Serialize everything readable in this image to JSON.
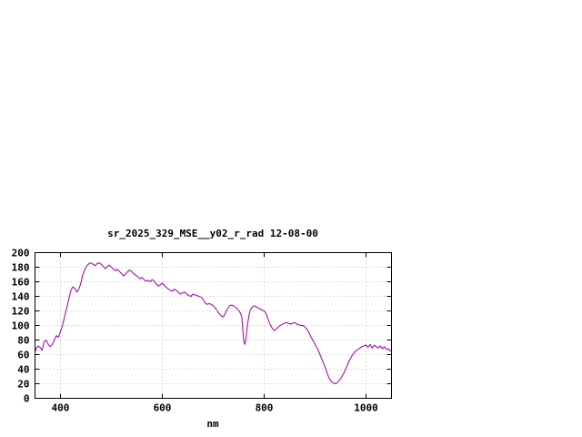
{
  "window": {
    "background": "#ffffff",
    "text_color": "#000000"
  },
  "chart_data": {
    "type": "line",
    "title": "sr_2025_329_MSE__y02_r_rad 12-08-00",
    "xlabel": "nm",
    "ylabel": "",
    "xlim": [
      350,
      1050
    ],
    "ylim": [
      0,
      200
    ],
    "x_ticks": [
      400,
      600,
      800,
      1000
    ],
    "y_ticks": [
      0,
      20,
      40,
      60,
      80,
      100,
      120,
      140,
      160,
      180,
      200
    ],
    "grid": true,
    "legend": "none",
    "line_color": "#990099",
    "grid_color": "#b8b8b8",
    "border_color": "#000000",
    "series": [
      {
        "name": "sr_2025_329_MSE__y02_r_rad",
        "x": [
          350,
          352,
          356,
          360,
          364,
          368,
          372,
          376,
          380,
          384,
          388,
          392,
          396,
          400,
          404,
          408,
          412,
          416,
          420,
          424,
          428,
          432,
          436,
          440,
          444,
          448,
          452,
          456,
          460,
          464,
          468,
          472,
          476,
          480,
          484,
          488,
          492,
          496,
          500,
          504,
          508,
          512,
          516,
          520,
          524,
          528,
          532,
          536,
          540,
          544,
          548,
          552,
          556,
          560,
          564,
          568,
          572,
          576,
          580,
          584,
          588,
          592,
          596,
          600,
          604,
          608,
          612,
          616,
          620,
          624,
          628,
          632,
          636,
          640,
          644,
          648,
          652,
          656,
          660,
          664,
          668,
          672,
          676,
          680,
          684,
          688,
          692,
          696,
          700,
          704,
          708,
          712,
          716,
          720,
          724,
          728,
          732,
          736,
          740,
          744,
          748,
          752,
          756,
          760,
          762,
          764,
          768,
          772,
          776,
          780,
          784,
          788,
          792,
          796,
          800,
          804,
          808,
          812,
          816,
          820,
          824,
          828,
          832,
          836,
          840,
          844,
          848,
          852,
          856,
          860,
          864,
          868,
          872,
          876,
          880,
          884,
          888,
          892,
          896,
          900,
          904,
          908,
          912,
          916,
          920,
          924,
          928,
          932,
          936,
          940,
          944,
          948,
          952,
          956,
          960,
          964,
          968,
          972,
          976,
          980,
          984,
          988,
          992,
          996,
          1000,
          1004,
          1008,
          1012,
          1016,
          1020,
          1024,
          1028,
          1032,
          1036,
          1040,
          1044,
          1048,
          1050
        ],
        "y": [
          62,
          68,
          72,
          70,
          66,
          78,
          80,
          74,
          71,
          74,
          80,
          86,
          84,
          92,
          100,
          112,
          123,
          135,
          147,
          153,
          151,
          146,
          150,
          158,
          170,
          177,
          182,
          185,
          186,
          184,
          182,
          185,
          186,
          184,
          181,
          178,
          181,
          183,
          180,
          178,
          175,
          177,
          174,
          171,
          168,
          171,
          174,
          176,
          174,
          171,
          169,
          167,
          164,
          166,
          163,
          161,
          162,
          160,
          163,
          161,
          157,
          154,
          156,
          158,
          155,
          152,
          150,
          148,
          147,
          150,
          148,
          145,
          143,
          145,
          146,
          143,
          141,
          140,
          143,
          142,
          141,
          140,
          139,
          136,
          131,
          129,
          130,
          129,
          127,
          124,
          120,
          116,
          113,
          112,
          117,
          123,
          127,
          128,
          127,
          125,
          122,
          119,
          112,
          78,
          74,
          80,
          105,
          120,
          125,
          127,
          126,
          124,
          123,
          121,
          120,
          116,
          108,
          101,
          96,
          93,
          95,
          98,
          100,
          102,
          103,
          104,
          103,
          102,
          103,
          104,
          102,
          101,
          100,
          100,
          98,
          95,
          90,
          84,
          79,
          74,
          69,
          63,
          56,
          49,
          42,
          34,
          27,
          23,
          21,
          20,
          22,
          25,
          29,
          34,
          40,
          47,
          53,
          58,
          62,
          65,
          67,
          69,
          71,
          72,
          73,
          70,
          74,
          69,
          73,
          71,
          69,
          72,
          68,
          71,
          67,
          68,
          65,
          64
        ]
      }
    ]
  }
}
